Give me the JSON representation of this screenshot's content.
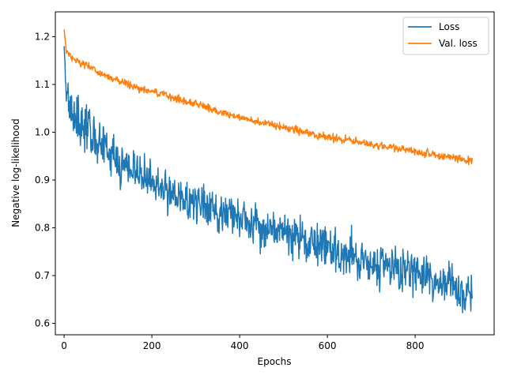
{
  "chart_data": {
    "type": "line",
    "title": "",
    "xlabel": "Epochs",
    "ylabel": "Negative log-likelihood",
    "xlim": [
      -20,
      980
    ],
    "ylim": [
      0.576,
      1.252
    ],
    "xticks": [
      0,
      200,
      400,
      600,
      800
    ],
    "yticks": [
      0.6,
      0.7,
      0.8,
      0.9,
      1.0,
      1.1,
      1.2
    ],
    "ytick_labels": [
      "0.6",
      "0.7",
      "0.8",
      "0.9",
      "1.0",
      "1.1",
      "1.2"
    ],
    "grid": false,
    "legend": "top-right",
    "epochs": 930,
    "series": [
      {
        "name": "Loss",
        "color": "#1f77b4",
        "noise": 0.035,
        "points": [
          [
            0,
            1.18
          ],
          [
            5,
            1.09
          ],
          [
            20,
            1.04
          ],
          [
            60,
            1.0
          ],
          [
            100,
            0.955
          ],
          [
            160,
            0.92
          ],
          [
            200,
            0.895
          ],
          [
            300,
            0.85
          ],
          [
            400,
            0.82
          ],
          [
            500,
            0.79
          ],
          [
            600,
            0.755
          ],
          [
            700,
            0.73
          ],
          [
            800,
            0.705
          ],
          [
            930,
            0.66
          ]
        ]
      },
      {
        "name": "Val. loss",
        "color": "#ff7f0e",
        "noise": 0.006,
        "points": [
          [
            0,
            1.215
          ],
          [
            5,
            1.17
          ],
          [
            20,
            1.155
          ],
          [
            60,
            1.135
          ],
          [
            100,
            1.115
          ],
          [
            160,
            1.095
          ],
          [
            200,
            1.085
          ],
          [
            300,
            1.06
          ],
          [
            400,
            1.03
          ],
          [
            500,
            1.01
          ],
          [
            600,
            0.99
          ],
          [
            700,
            0.975
          ],
          [
            800,
            0.96
          ],
          [
            930,
            0.94
          ]
        ]
      }
    ]
  }
}
